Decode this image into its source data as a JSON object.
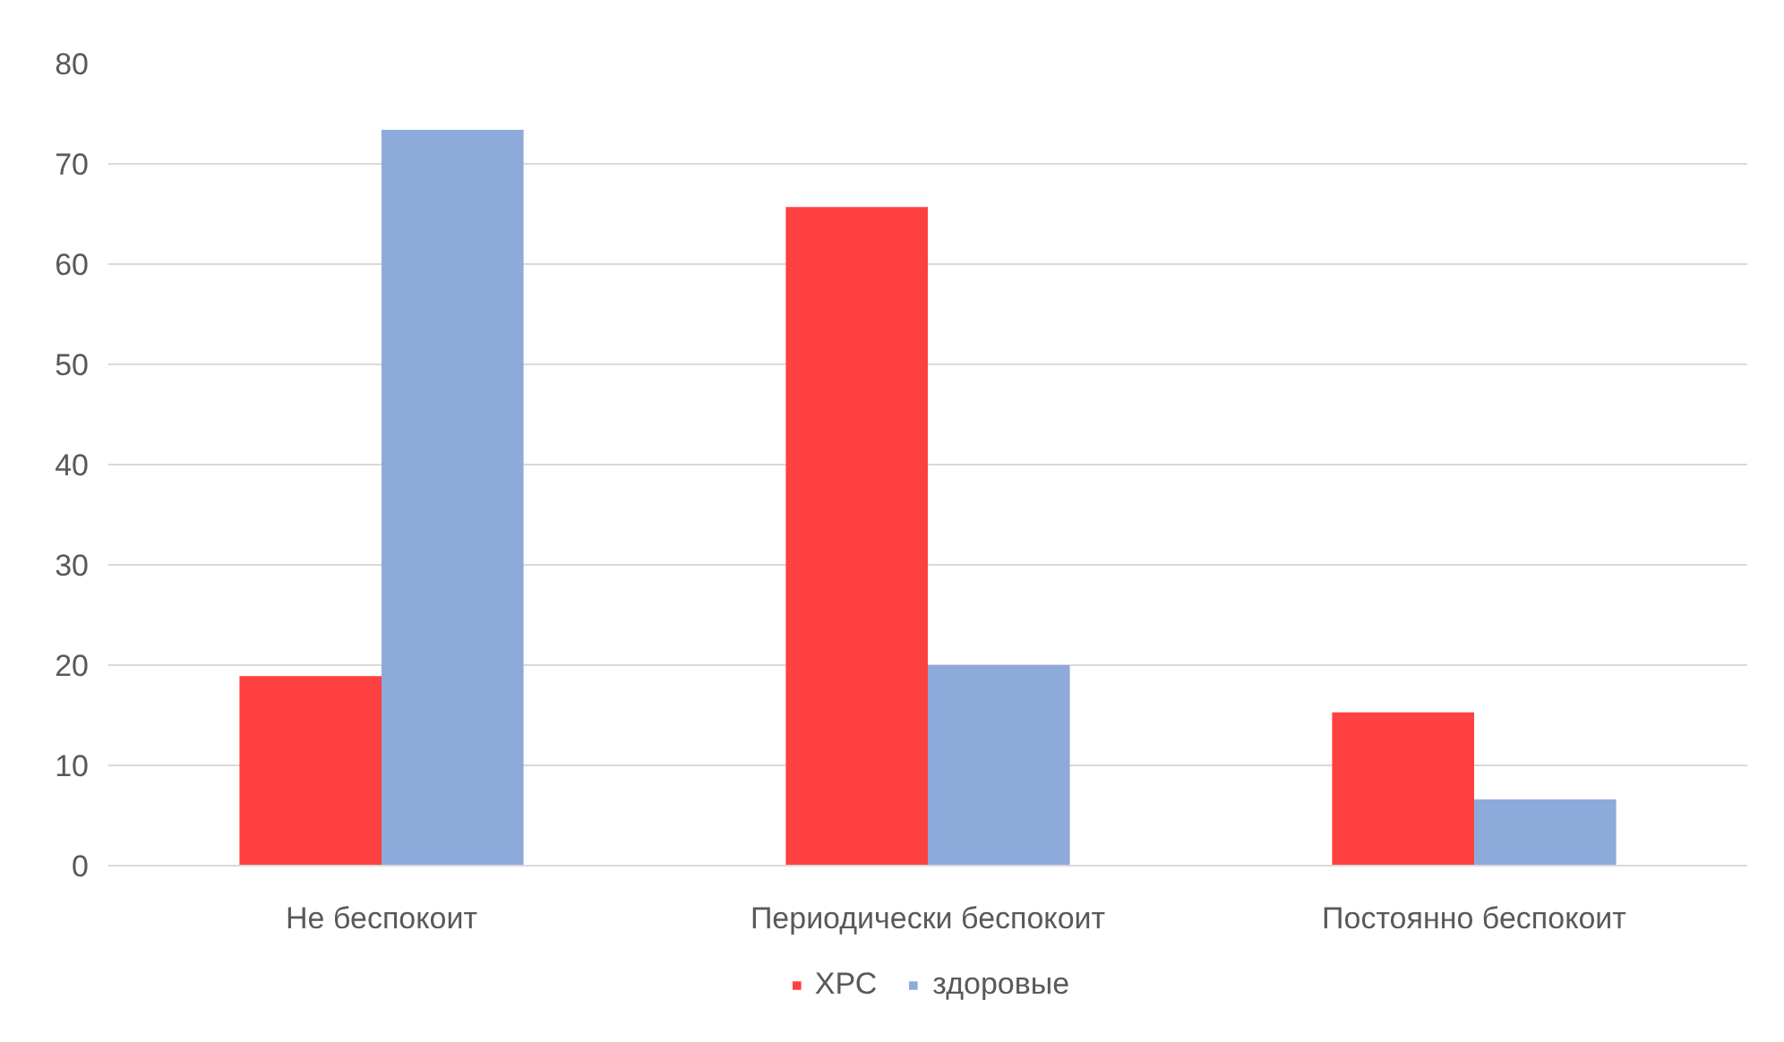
{
  "chart_data": {
    "type": "bar",
    "categories": [
      "Не беспокоит",
      "Периодически беспокоит",
      "Постоянно беспокоит"
    ],
    "series": [
      {
        "name": "ХРС",
        "color": "#ff4040",
        "values": [
          18.9,
          65.7,
          15.3
        ]
      },
      {
        "name": "здоровые",
        "color": "#8eaadb",
        "values": [
          73.4,
          20.0,
          6.6
        ]
      }
    ],
    "ylim": [
      0,
      80
    ],
    "yticks": [
      0,
      10,
      20,
      30,
      40,
      50,
      60,
      70,
      80
    ],
    "grid": "y",
    "legend": "bottom"
  }
}
